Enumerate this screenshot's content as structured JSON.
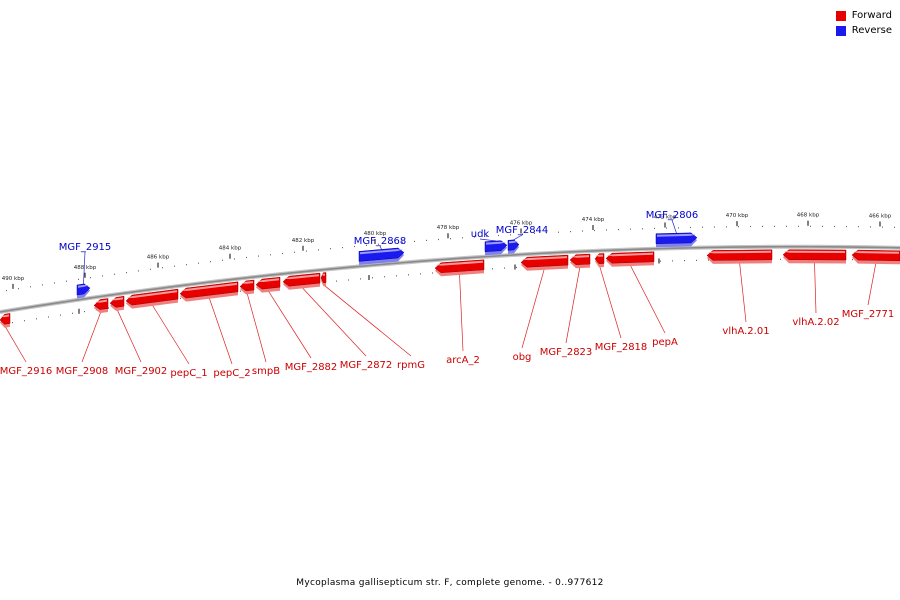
{
  "legend": {
    "forward_label": "Forward",
    "reverse_label": "Reverse",
    "forward_color": "#e60000",
    "reverse_color": "#1a1aee"
  },
  "caption": "Mycoplasma gallisepticum str. F, complete genome. - 0..977612",
  "colors": {
    "backbone": "#8a8a8a",
    "forward_label": "#cc0000",
    "reverse_label": "#0000cc"
  },
  "ticks": [
    {
      "label": "490 kbp"
    },
    {
      "label": "488 kbp"
    },
    {
      "label": "486 kbp"
    },
    {
      "label": "484 kbp"
    },
    {
      "label": "482 kbp"
    },
    {
      "label": "480 kbp"
    },
    {
      "label": "478 kbp"
    },
    {
      "label": "476 kbp"
    },
    {
      "label": "474 kbp"
    },
    {
      "label": "472 kbp"
    },
    {
      "label": "470 kbp"
    },
    {
      "label": "468 kbp"
    },
    {
      "label": "466 kbp"
    }
  ],
  "genes": [
    {
      "id": "MGF_2916",
      "strand": "forward",
      "label": "MGF_2916"
    },
    {
      "id": "MGF_2908",
      "strand": "forward",
      "label": "MGF_2908"
    },
    {
      "id": "MGF_2902",
      "strand": "forward",
      "label": "MGF_2902"
    },
    {
      "id": "pepC_1",
      "strand": "forward",
      "label": "pepC_1"
    },
    {
      "id": "pepC_2",
      "strand": "forward",
      "label": "pepC_2"
    },
    {
      "id": "smpB",
      "strand": "forward",
      "label": "smpB"
    },
    {
      "id": "MGF_2882",
      "strand": "forward",
      "label": "MGF_2882"
    },
    {
      "id": "MGF_2872",
      "strand": "forward",
      "label": "MGF_2872"
    },
    {
      "id": "rpmG",
      "strand": "forward",
      "label": "rpmG"
    },
    {
      "id": "arcA_2",
      "strand": "forward",
      "label": "arcA_2"
    },
    {
      "id": "obg",
      "strand": "forward",
      "label": "obg"
    },
    {
      "id": "MGF_2823",
      "strand": "forward",
      "label": "MGF_2823"
    },
    {
      "id": "MGF_2818",
      "strand": "forward",
      "label": "MGF_2818"
    },
    {
      "id": "pepA",
      "strand": "forward",
      "label": "pepA"
    },
    {
      "id": "vlhA.2.01",
      "strand": "forward",
      "label": "vlhA.2.01"
    },
    {
      "id": "vlhA.2.02",
      "strand": "forward",
      "label": "vlhA.2.02"
    },
    {
      "id": "MGF_2771",
      "strand": "forward",
      "label": "MGF_2771"
    },
    {
      "id": "MGF_2915",
      "strand": "reverse",
      "label": "MGF_2915"
    },
    {
      "id": "MGF_2868",
      "strand": "reverse",
      "label": "MGF_2868"
    },
    {
      "id": "udk",
      "strand": "reverse",
      "label": "udk"
    },
    {
      "id": "MGF_2844",
      "strand": "reverse",
      "label": "MGF_2844"
    },
    {
      "id": "MGF_2806",
      "strand": "reverse",
      "label": "MGF_2806"
    }
  ]
}
